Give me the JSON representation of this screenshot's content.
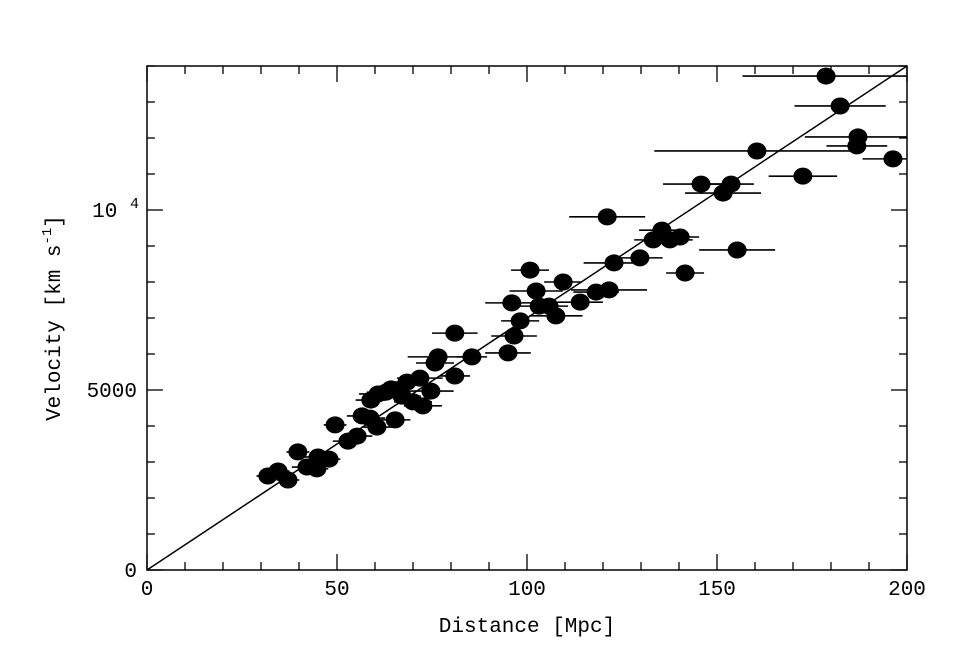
{
  "chart_data": {
    "type": "scatter",
    "title": "",
    "xlabel": "Distance [Mpc]",
    "ylabel_main": "Velocity [km s",
    "ylabel_sup": "-1",
    "ylabel_close": "]",
    "xlim": [
      0,
      200
    ],
    "ylim": [
      0,
      14000
    ],
    "x_ticks": [
      {
        "value": 0,
        "label": "0"
      },
      {
        "value": 50,
        "label": "50"
      },
      {
        "value": 100,
        "label": "100"
      },
      {
        "value": 150,
        "label": "150"
      },
      {
        "value": 200,
        "label": "200"
      }
    ],
    "x_minor_step": 10,
    "y_ticks": [
      {
        "value": 0,
        "label": "0"
      },
      {
        "value": 5000,
        "label": "5000"
      },
      {
        "value": 10000,
        "label": "10",
        "sup": "4"
      }
    ],
    "y_minor_step": 1000,
    "fit_line": {
      "slope": 70,
      "intercept": 0
    },
    "points": [
      {
        "x": 178.7,
        "y": 13720,
        "xerr": 22
      },
      {
        "x": 182.4,
        "y": 12890,
        "xerr": 12
      },
      {
        "x": 187.1,
        "y": 12030,
        "xerr": 14
      },
      {
        "x": 186.8,
        "y": 11780,
        "xerr": 8
      },
      {
        "x": 196.3,
        "y": 11420,
        "xerr": 8
      },
      {
        "x": 160.5,
        "y": 11640,
        "xerr": 27
      },
      {
        "x": 172.6,
        "y": 10940,
        "xerr": 9
      },
      {
        "x": 145.8,
        "y": 10720,
        "xerr": 10
      },
      {
        "x": 153.7,
        "y": 10720,
        "xerr": 6
      },
      {
        "x": 151.6,
        "y": 10470,
        "xerr": 10
      },
      {
        "x": 121.1,
        "y": 9810,
        "xerr": 10
      },
      {
        "x": 135.5,
        "y": 9440,
        "xerr": 6
      },
      {
        "x": 133.2,
        "y": 9170,
        "xerr": 5
      },
      {
        "x": 137.6,
        "y": 9170,
        "xerr": 6
      },
      {
        "x": 140.3,
        "y": 9250,
        "xerr": 5
      },
      {
        "x": 129.7,
        "y": 8670,
        "xerr": 6
      },
      {
        "x": 122.9,
        "y": 8530,
        "xerr": 8
      },
      {
        "x": 155.3,
        "y": 8890,
        "xerr": 10
      },
      {
        "x": 141.6,
        "y": 8250,
        "xerr": 5
      },
      {
        "x": 100.8,
        "y": 8330,
        "xerr": 5
      },
      {
        "x": 109.5,
        "y": 8000,
        "xerr": 5
      },
      {
        "x": 102.4,
        "y": 7750,
        "xerr": 7
      },
      {
        "x": 121.6,
        "y": 7780,
        "xerr": 10
      },
      {
        "x": 118.2,
        "y": 7720,
        "xerr": 6
      },
      {
        "x": 114.0,
        "y": 7440,
        "xerr": 6
      },
      {
        "x": 96.0,
        "y": 7420,
        "xerr": 7
      },
      {
        "x": 103.2,
        "y": 7330,
        "xerr": 5
      },
      {
        "x": 105.8,
        "y": 7330,
        "xerr": 5
      },
      {
        "x": 107.6,
        "y": 7060,
        "xerr": 7
      },
      {
        "x": 98.2,
        "y": 6920,
        "xerr": 5
      },
      {
        "x": 96.6,
        "y": 6500,
        "xerr": 6
      },
      {
        "x": 81.0,
        "y": 6580,
        "xerr": 6
      },
      {
        "x": 95.0,
        "y": 6030,
        "xerr": 6
      },
      {
        "x": 85.5,
        "y": 5920,
        "xerr": 4
      },
      {
        "x": 76.6,
        "y": 5920,
        "xerr": 8
      },
      {
        "x": 75.8,
        "y": 5750,
        "xerr": 5
      },
      {
        "x": 81.0,
        "y": 5390,
        "xerr": 4
      },
      {
        "x": 74.7,
        "y": 4970,
        "xerr": 6
      },
      {
        "x": 71.8,
        "y": 5330,
        "xerr": 6
      },
      {
        "x": 68.4,
        "y": 5220,
        "xerr": 5
      },
      {
        "x": 72.6,
        "y": 4560,
        "xerr": 5
      },
      {
        "x": 70.0,
        "y": 4670,
        "xerr": 5
      },
      {
        "x": 67.1,
        "y": 4830,
        "xerr": 5
      },
      {
        "x": 64.2,
        "y": 5030,
        "xerr": 5
      },
      {
        "x": 60.8,
        "y": 4890,
        "xerr": 5
      },
      {
        "x": 62.9,
        "y": 4940,
        "xerr": 5
      },
      {
        "x": 58.9,
        "y": 4720,
        "xerr": 4
      },
      {
        "x": 65.3,
        "y": 4170,
        "xerr": 4
      },
      {
        "x": 56.6,
        "y": 4280,
        "xerr": 4
      },
      {
        "x": 60.5,
        "y": 3970,
        "xerr": 4
      },
      {
        "x": 58.7,
        "y": 4220,
        "xerr": 4
      },
      {
        "x": 49.5,
        "y": 4030,
        "xerr": 3
      },
      {
        "x": 55.3,
        "y": 3720,
        "xerr": 4
      },
      {
        "x": 52.9,
        "y": 3580,
        "xerr": 4
      },
      {
        "x": 47.9,
        "y": 3080,
        "xerr": 3
      },
      {
        "x": 45.0,
        "y": 3140,
        "xerr": 4
      },
      {
        "x": 42.1,
        "y": 2860,
        "xerr": 4
      },
      {
        "x": 39.7,
        "y": 3280,
        "xerr": 3
      },
      {
        "x": 44.7,
        "y": 2810,
        "xerr": 3
      },
      {
        "x": 37.1,
        "y": 2500,
        "xerr": 3
      },
      {
        "x": 34.5,
        "y": 2750,
        "xerr": 3
      },
      {
        "x": 31.8,
        "y": 2610,
        "xerr": 3
      }
    ]
  }
}
